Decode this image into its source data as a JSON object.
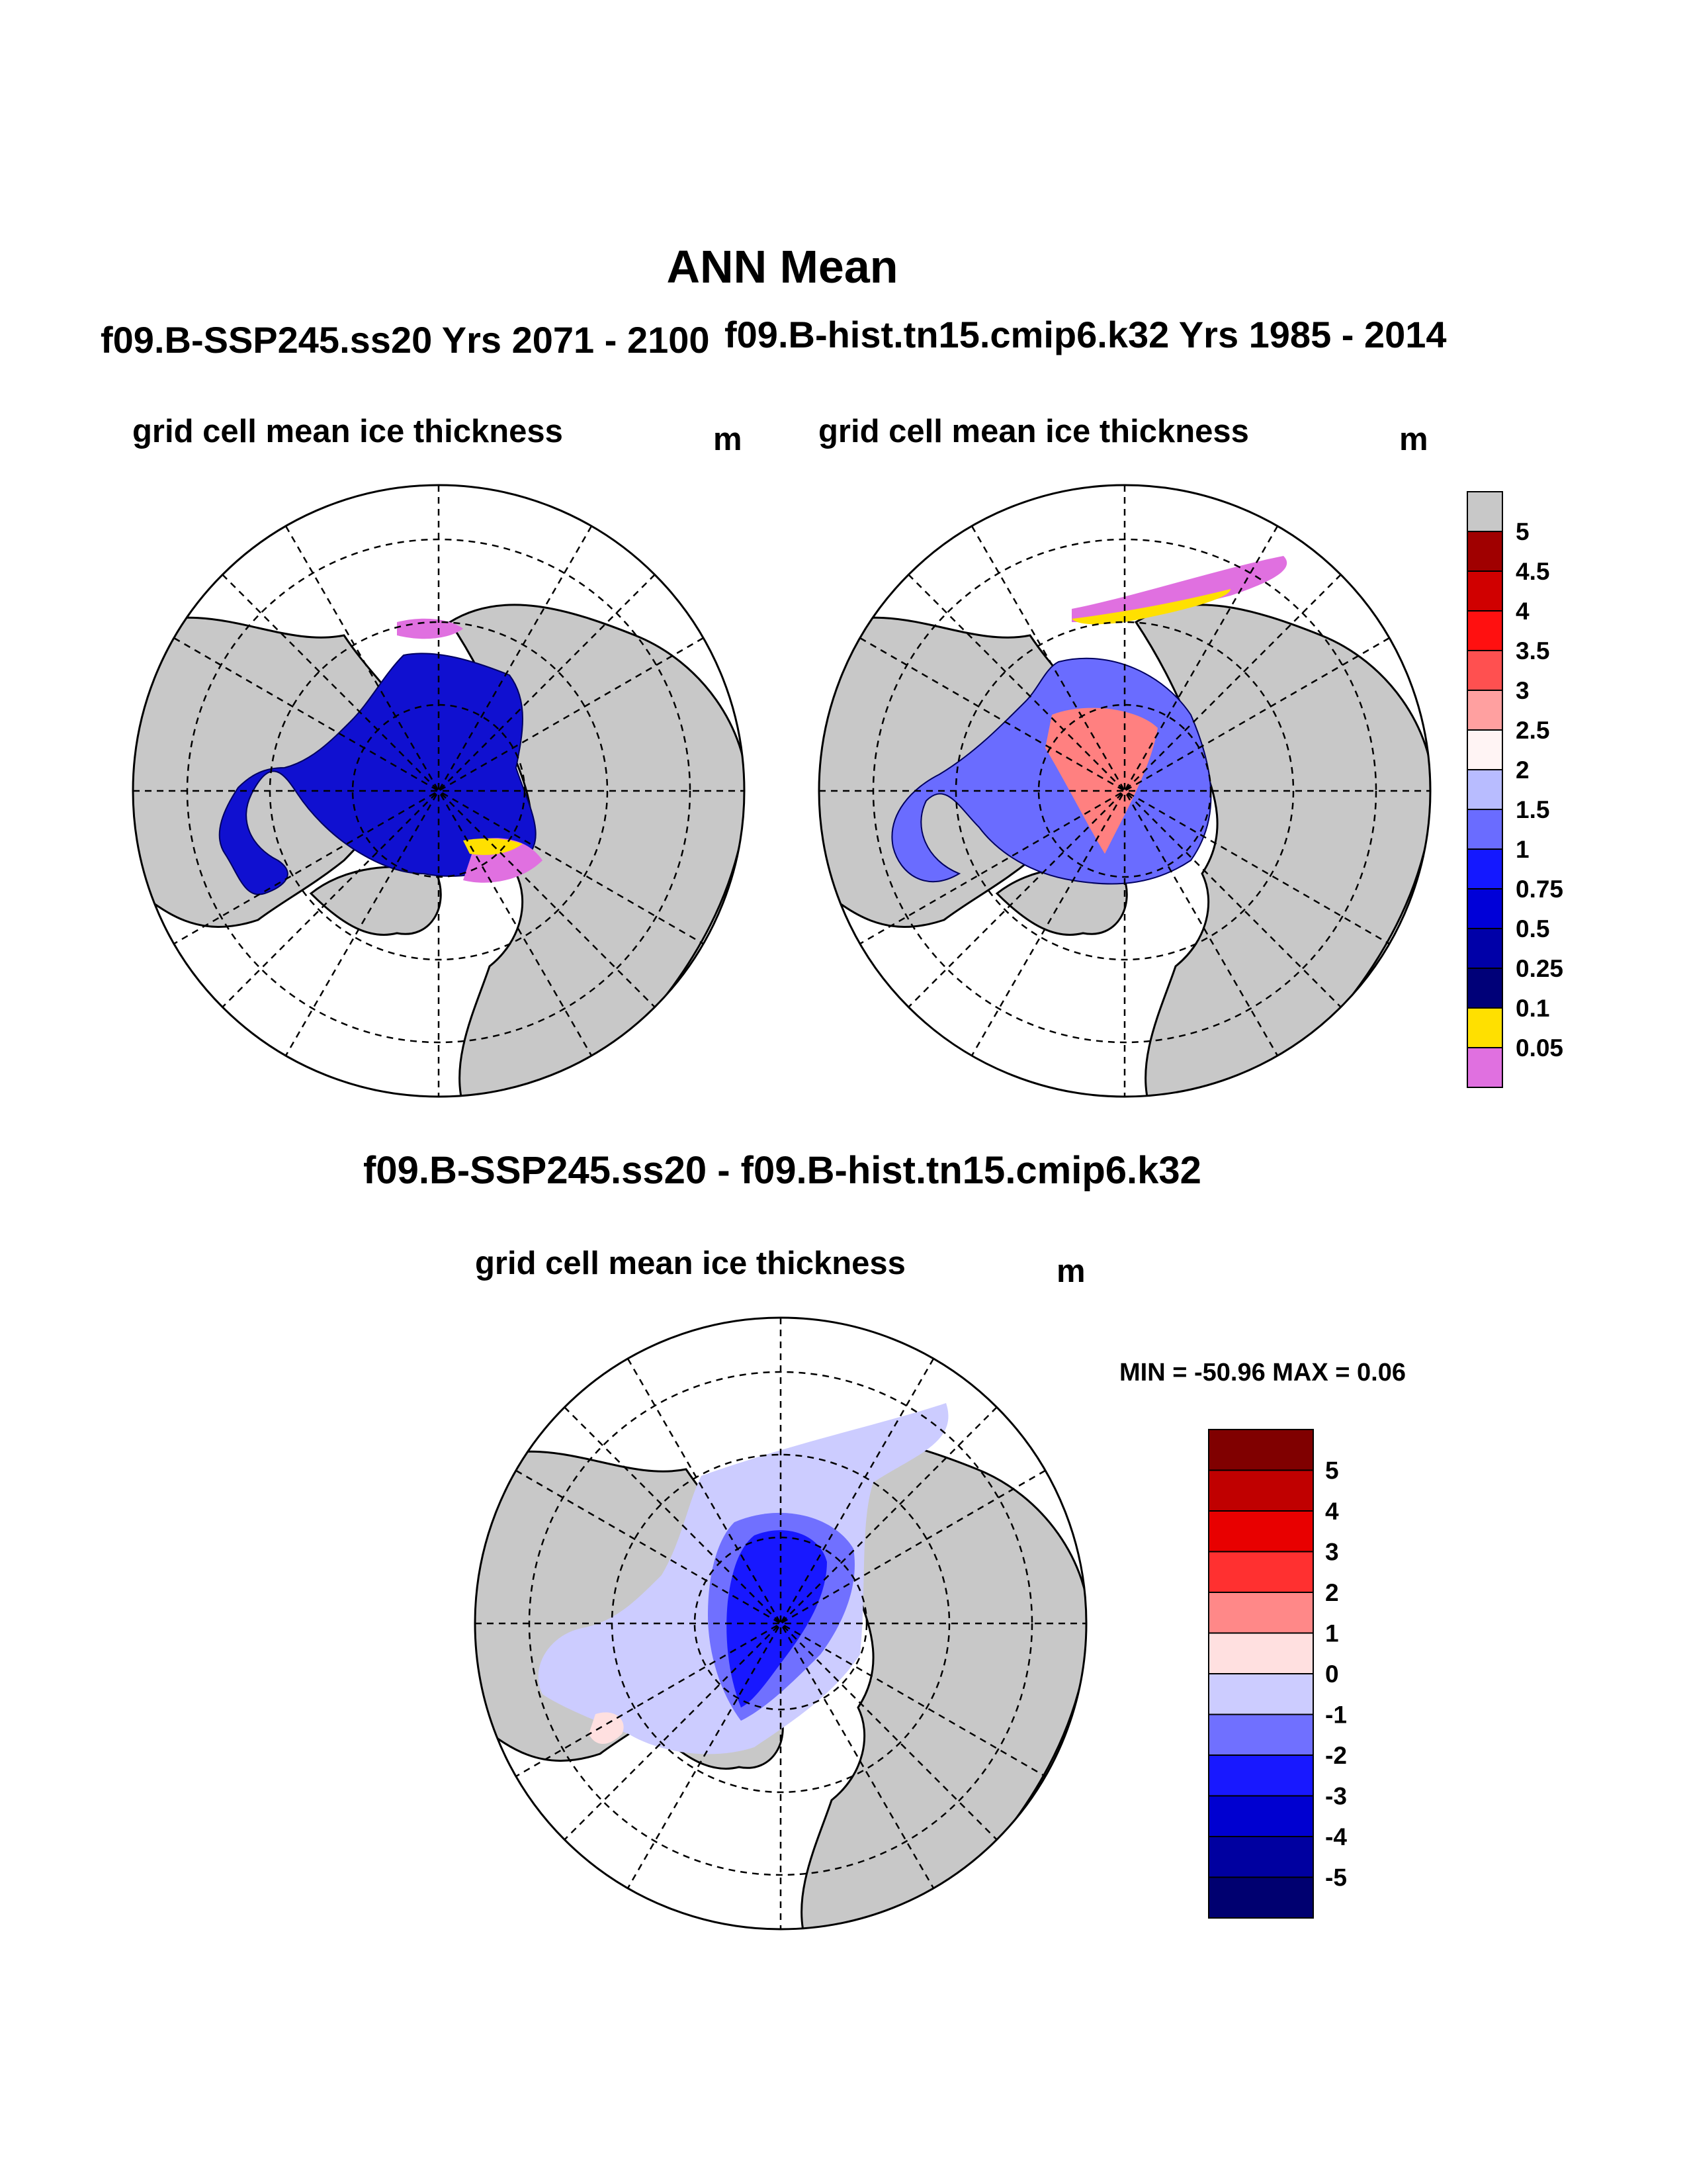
{
  "figure": {
    "title": "ANN Mean",
    "panel1": {
      "case": "f09.B-SSP245.ss20  Yrs 2071 - 2100",
      "variable": "grid cell mean ice thickness",
      "units": "m"
    },
    "panel2": {
      "case": "f09.B-hist.tn15.cmip6.k32  Yrs 1985 - 2014",
      "variable": "grid cell mean ice thickness",
      "units": "m"
    },
    "panel3": {
      "case": "f09.B-SSP245.ss20 - f09.B-hist.tn15.cmip6.k32",
      "variable": "grid cell mean ice thickness",
      "units": "m",
      "stats": "MIN = -50.96 MAX =   0.06"
    }
  },
  "colorbar_top": {
    "labels": [
      "5",
      "4.5",
      "4",
      "3.5",
      "3",
      "2.5",
      "2",
      "1.5",
      "1",
      "0.75",
      "0.5",
      "0.25",
      "0.1",
      "0.05"
    ],
    "colors": [
      "#c8c8c8",
      "#a00000",
      "#d00000",
      "#ff1010",
      "#ff5050",
      "#ffa0a0",
      "#fff4f4",
      "#b8bcff",
      "#6a6cff",
      "#1418ff",
      "#0000d8",
      "#0000a8",
      "#000078",
      "#ffe000",
      "#e070e0"
    ]
  },
  "colorbar_diff": {
    "labels": [
      "5",
      "4",
      "3",
      "2",
      "1",
      "0",
      "-1",
      "-2",
      "-3",
      "-4",
      "-5"
    ],
    "colors": [
      "#800000",
      "#c00000",
      "#e80000",
      "#ff3030",
      "#ff8888",
      "#ffe0e0",
      "#ccccff",
      "#7070ff",
      "#1818ff",
      "#0000d0",
      "#0000a0",
      "#000070"
    ]
  },
  "map_colors": {
    "land": "#c8c8c8",
    "ocean": "#ffffff"
  }
}
